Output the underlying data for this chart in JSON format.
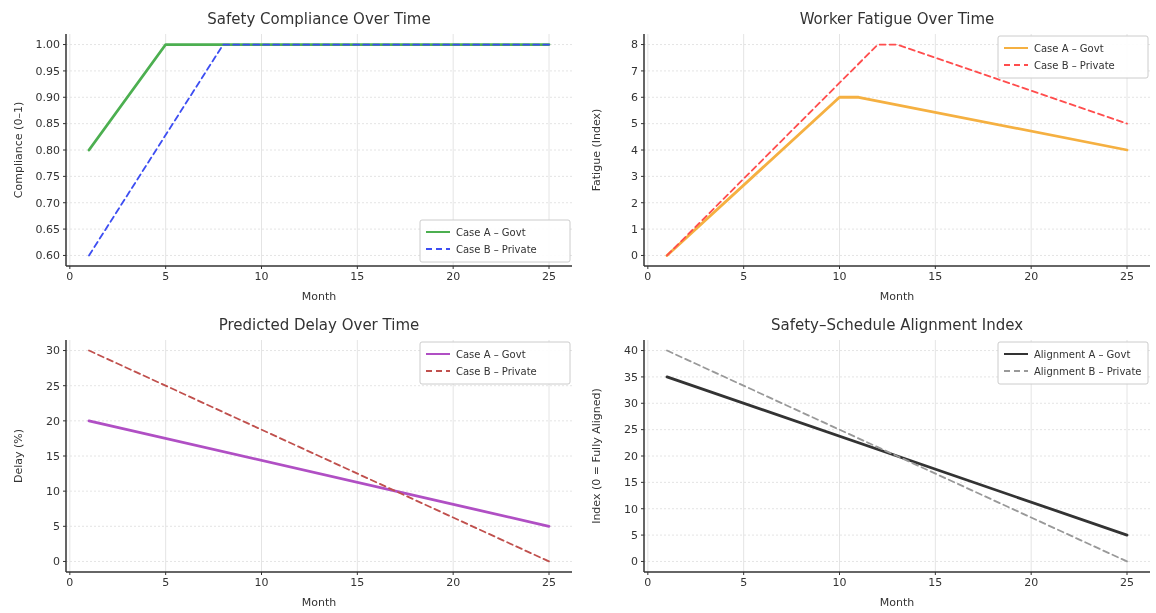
{
  "chart_data": [
    {
      "type": "line",
      "title": "Safety Compliance Over Time",
      "xlabel": "Month",
      "ylabel": "Compliance (0–1)",
      "xlim": [
        -0.2,
        26.2
      ],
      "xticks": [
        0,
        5,
        10,
        15,
        20,
        25
      ],
      "ylim": [
        0.58,
        1.02
      ],
      "yticks": [
        {
          "value": 0.6,
          "label": "0.60"
        },
        {
          "value": 0.65,
          "label": "0.65"
        },
        {
          "value": 0.7,
          "label": "0.70"
        },
        {
          "value": 0.75,
          "label": "0.75"
        },
        {
          "value": 0.8,
          "label": "0.80"
        },
        {
          "value": 0.85,
          "label": "0.85"
        },
        {
          "value": 0.9,
          "label": "0.90"
        },
        {
          "value": 0.95,
          "label": "0.95"
        },
        {
          "value": 1.0,
          "label": "1.00"
        }
      ],
      "grid": true,
      "legend": "bottom right",
      "series": [
        {
          "name": "Case A – Govt",
          "color": "#4caf50",
          "line_style": "solid",
          "x": [
            1,
            5,
            25
          ],
          "values": [
            0.8,
            1.0,
            1.0
          ]
        },
        {
          "name": "Case B – Private",
          "color": "#3d4ef2",
          "line_style": "dashed",
          "x": [
            1,
            8,
            25
          ],
          "values": [
            0.6,
            1.0,
            1.0
          ]
        }
      ]
    },
    {
      "type": "line",
      "title": "Worker Fatigue Over Time",
      "xlabel": "Month",
      "ylabel": "Fatigue (Index)",
      "xlim": [
        -0.2,
        26.2
      ],
      "xticks": [
        0,
        5,
        10,
        15,
        20,
        25
      ],
      "ylim": [
        -0.4,
        8.4
      ],
      "yticks": [
        0,
        1,
        2,
        3,
        4,
        5,
        6,
        7,
        8
      ],
      "grid": true,
      "legend": "top right",
      "series": [
        {
          "name": "Case A – Govt",
          "color": "#f5b041",
          "line_style": "solid",
          "x": [
            1,
            10,
            11,
            25
          ],
          "values": [
            0,
            6,
            6,
            4
          ]
        },
        {
          "name": "Case B – Private",
          "color": "#ff4d4d",
          "line_style": "dashed",
          "x": [
            1,
            12,
            13,
            25
          ],
          "values": [
            0,
            8,
            8,
            5
          ]
        }
      ]
    },
    {
      "type": "line",
      "title": "Predicted Delay Over Time",
      "xlabel": "Month",
      "ylabel": "Delay (%)",
      "xlim": [
        -0.2,
        26.2
      ],
      "xticks": [
        0,
        5,
        10,
        15,
        20,
        25
      ],
      "ylim": [
        -1.5,
        31.5
      ],
      "yticks": [
        0,
        5,
        10,
        15,
        20,
        25,
        30
      ],
      "grid": true,
      "legend": "top right",
      "series": [
        {
          "name": "Case A – Govt",
          "color": "#b04fc4",
          "line_style": "solid",
          "x": [
            1,
            25
          ],
          "values": [
            20,
            5
          ]
        },
        {
          "name": "Case B – Private",
          "color": "#c0504d",
          "line_style": "dashed",
          "x": [
            1,
            25
          ],
          "values": [
            30,
            0
          ]
        }
      ]
    },
    {
      "type": "line",
      "title": "Safety–Schedule Alignment Index",
      "xlabel": "Month",
      "ylabel": "Index (0 = Fully Aligned)",
      "xlim": [
        -0.2,
        26.2
      ],
      "xticks": [
        0,
        5,
        10,
        15,
        20,
        25
      ],
      "ylim": [
        -2,
        42
      ],
      "yticks": [
        0,
        5,
        10,
        15,
        20,
        25,
        30,
        35,
        40
      ],
      "grid": true,
      "legend": "top right",
      "series": [
        {
          "name": "Alignment A – Govt",
          "color": "#333333",
          "line_style": "solid",
          "x": [
            1,
            25
          ],
          "values": [
            35,
            5
          ]
        },
        {
          "name": "Alignment B – Private",
          "color": "#999999",
          "line_style": "dashed",
          "x": [
            1,
            25
          ],
          "values": [
            40,
            0
          ]
        }
      ]
    }
  ]
}
